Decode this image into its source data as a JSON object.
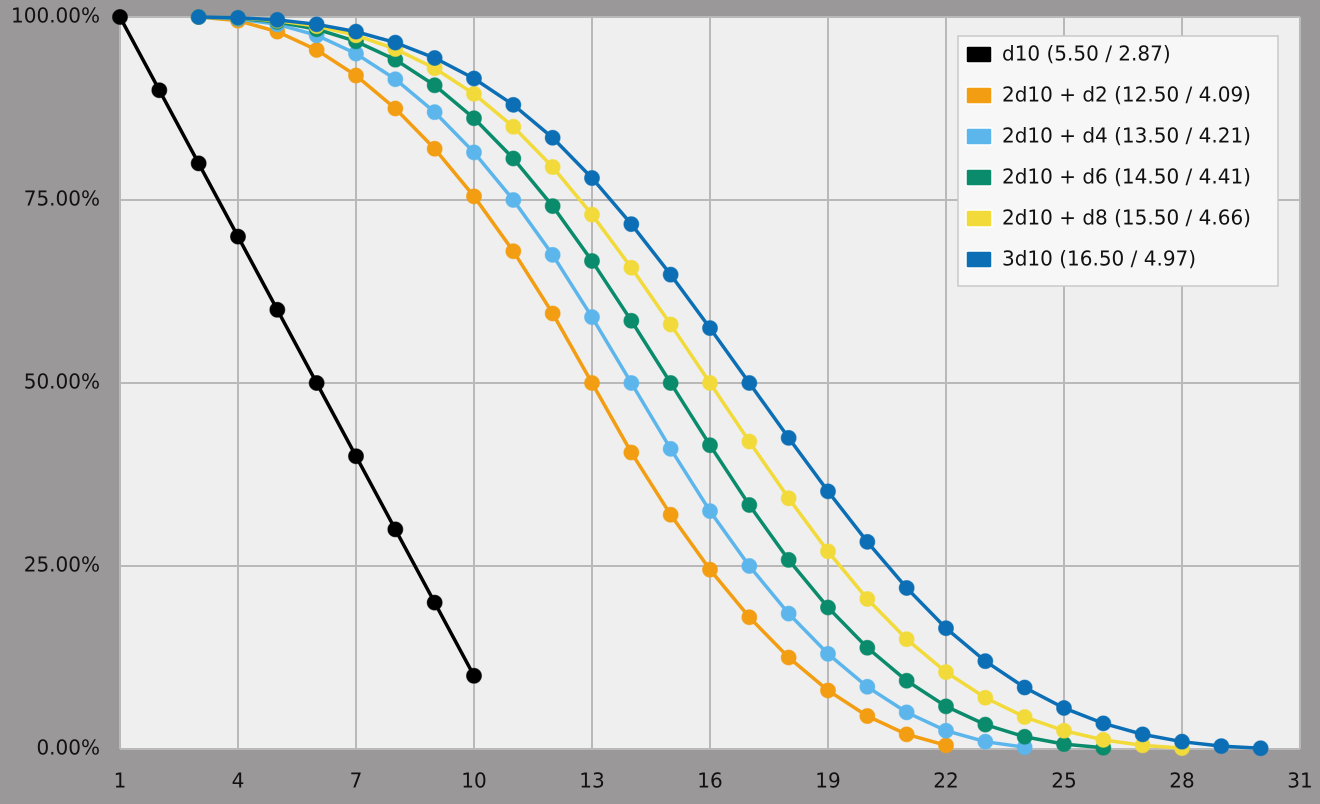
{
  "chart_data": {
    "type": "line",
    "x": [
      1,
      2,
      3,
      4,
      5,
      6,
      7,
      8,
      9,
      10,
      11,
      12,
      13,
      14,
      15,
      16,
      17,
      18,
      19,
      20,
      21,
      22,
      23,
      24,
      25,
      26,
      27,
      28,
      29,
      30
    ],
    "xlim": [
      1,
      31
    ],
    "xticks": [
      1,
      4,
      7,
      10,
      13,
      16,
      19,
      22,
      25,
      28,
      31
    ],
    "ylim": [
      0,
      100
    ],
    "yticks": [
      {
        "value": 0,
        "label": "0.00%"
      },
      {
        "value": 25,
        "label": "25.00%"
      },
      {
        "value": 50,
        "label": "50.00%"
      },
      {
        "value": 75,
        "label": "75.00%"
      },
      {
        "value": 100,
        "label": "100.00%"
      }
    ],
    "grid": true,
    "legend": "top-right",
    "series": [
      {
        "name": "d10 (5.50 / 2.87)",
        "color": "#000000",
        "values": [
          100,
          90,
          80,
          70,
          60,
          50,
          40,
          30,
          20,
          10,
          null,
          null,
          null,
          null,
          null,
          null,
          null,
          null,
          null,
          null,
          null,
          null,
          null,
          null,
          null,
          null,
          null,
          null,
          null,
          null
        ]
      },
      {
        "name": "2d10 + d2 (12.50 / 4.09)",
        "color": "#f29d12",
        "values": [
          null,
          null,
          100,
          99.5,
          98,
          95.5,
          92,
          87.5,
          82,
          75.5,
          68,
          59.5,
          50,
          40.5,
          32,
          24.5,
          18,
          12.5,
          8,
          4.5,
          2,
          0.5,
          null,
          null,
          null,
          null,
          null,
          null,
          null,
          null
        ]
      },
      {
        "name": "2d10 + d4 (13.50 / 4.21)",
        "color": "#5cb6ec",
        "values": [
          null,
          null,
          100,
          99.75,
          99,
          97.5,
          95,
          91.5,
          87,
          81.5,
          75,
          67.5,
          59,
          50,
          41,
          32.5,
          25,
          18.5,
          13,
          8.5,
          5,
          2.5,
          1,
          0.25,
          null,
          null,
          null,
          null,
          null,
          null
        ]
      },
      {
        "name": "2d10 + d6 (14.50 / 4.41)",
        "color": "#0a8b6b",
        "values": [
          null,
          null,
          100,
          99.83,
          99.33,
          98.33,
          96.67,
          94.17,
          90.67,
          86.17,
          80.67,
          74.17,
          66.67,
          58.5,
          50,
          41.5,
          33.33,
          25.83,
          19.33,
          13.83,
          9.33,
          5.83,
          3.33,
          1.67,
          0.67,
          0.17,
          null,
          null,
          null,
          null
        ]
      },
      {
        "name": "2d10 + d8 (15.50 / 4.66)",
        "color": "#f1da3a",
        "values": [
          null,
          null,
          100,
          99.875,
          99.5,
          98.75,
          97.5,
          95.625,
          93,
          89.5,
          85,
          79.5,
          73,
          65.75,
          58,
          50,
          42,
          34.25,
          27,
          20.5,
          15,
          10.5,
          7,
          4.375,
          2.5,
          1.25,
          0.5,
          0.125,
          null,
          null
        ]
      },
      {
        "name": "3d10 (16.50 / 4.97)",
        "color": "#0c6fb5",
        "values": [
          null,
          null,
          100,
          99.9,
          99.6,
          99,
          98,
          96.5,
          94.4,
          91.6,
          88,
          83.5,
          78,
          71.7,
          64.8,
          57.5,
          50,
          42.5,
          35.2,
          28.3,
          22,
          16.5,
          12,
          8.4,
          5.6,
          3.5,
          2,
          1,
          0.4,
          0.1
        ]
      }
    ]
  }
}
